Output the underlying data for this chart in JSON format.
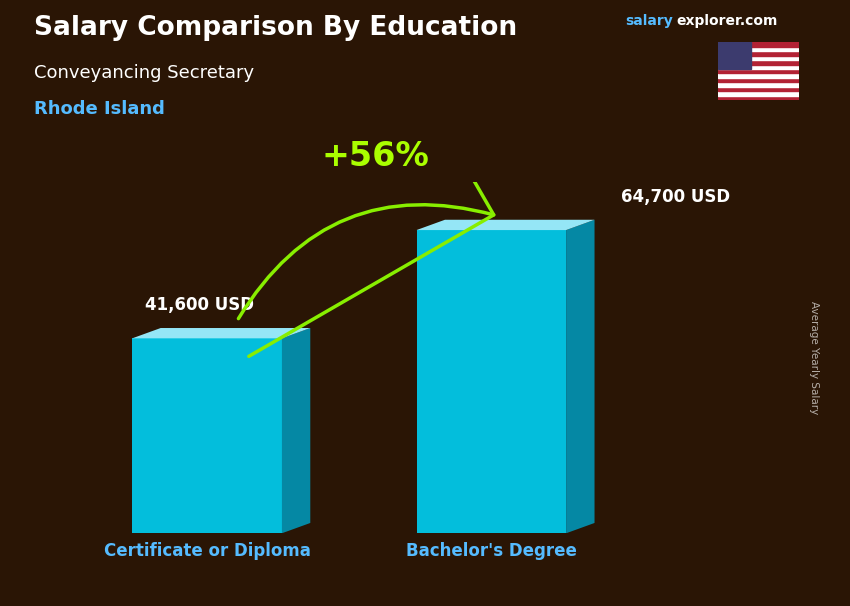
{
  "title": "Salary Comparison By Education",
  "subtitle_job": "Conveyancing Secretary",
  "subtitle_location": "Rhode Island",
  "categories": [
    "Certificate or Diploma",
    "Bachelor's Degree"
  ],
  "values": [
    41600,
    64700
  ],
  "value_labels": [
    "41,600 USD",
    "64,700 USD"
  ],
  "pct_change": "+56%",
  "face_color": "#00CCEE",
  "top_color": "#99EEFF",
  "side_color": "#0099BB",
  "ylabel": "Average Yearly Salary",
  "bg_color": "#2a1505",
  "title_color": "#FFFFFF",
  "subtitle_job_color": "#FFFFFF",
  "subtitle_location_color": "#55BBFF",
  "category_label_color": "#55BBFF",
  "value_label_color": "#FFFFFF",
  "pct_color": "#AAFF00",
  "arrow_color": "#88EE00",
  "salary_domain": [
    0,
    75000
  ],
  "website_salary_color": "#55BBFF",
  "website_explorer_color": "#FFFFFF"
}
